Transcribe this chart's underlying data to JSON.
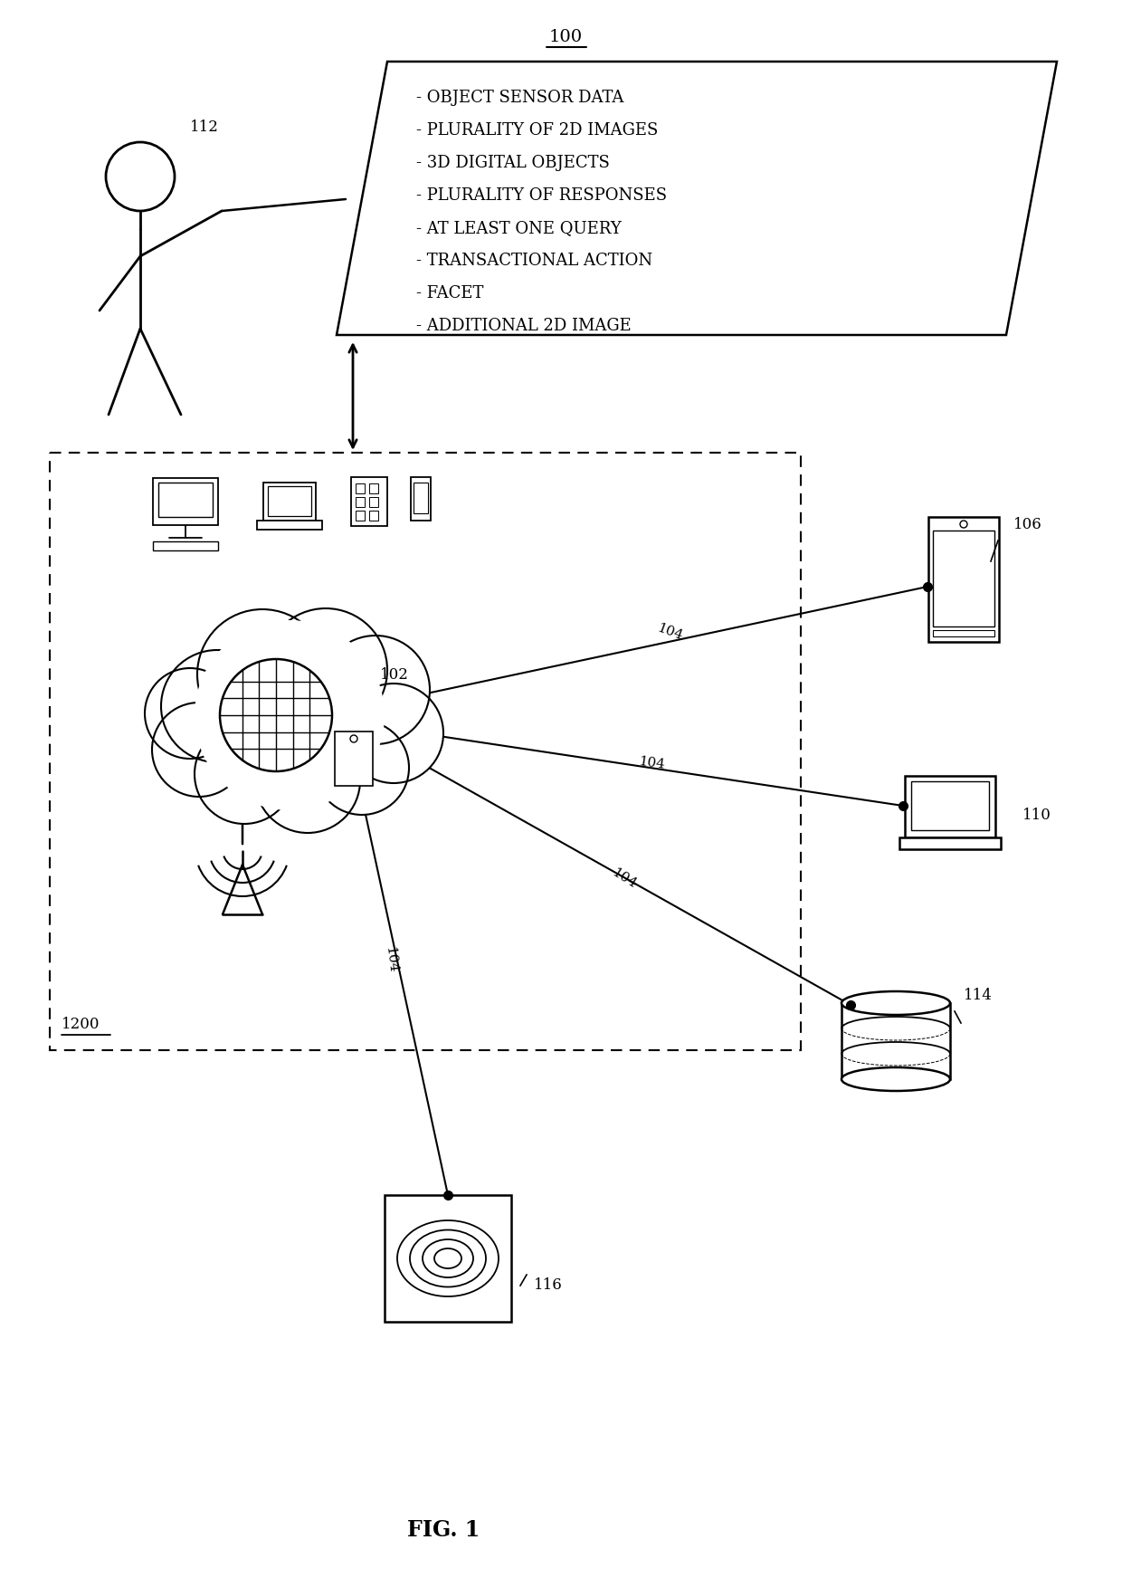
{
  "title": "FIG. 1",
  "ref_100": "100",
  "ref_102": "102",
  "ref_104": "104",
  "ref_106": "106",
  "ref_110": "110",
  "ref_112": "112",
  "ref_114": "114",
  "ref_116": "116",
  "ref_1200": "1200",
  "box_items": [
    "- OBJECT SENSOR DATA",
    "- PLURALITY OF 2D IMAGES",
    "- 3D DIGITAL OBJECTS",
    "- PLURALITY OF RESPONSES",
    "- AT LEAST ONE QUERY",
    "- TRANSACTIONAL ACTION",
    "- FACET",
    "- ADDITIONAL 2D IMAGE"
  ],
  "bg_color": "#ffffff",
  "line_color": "#000000",
  "text_color": "#000000"
}
